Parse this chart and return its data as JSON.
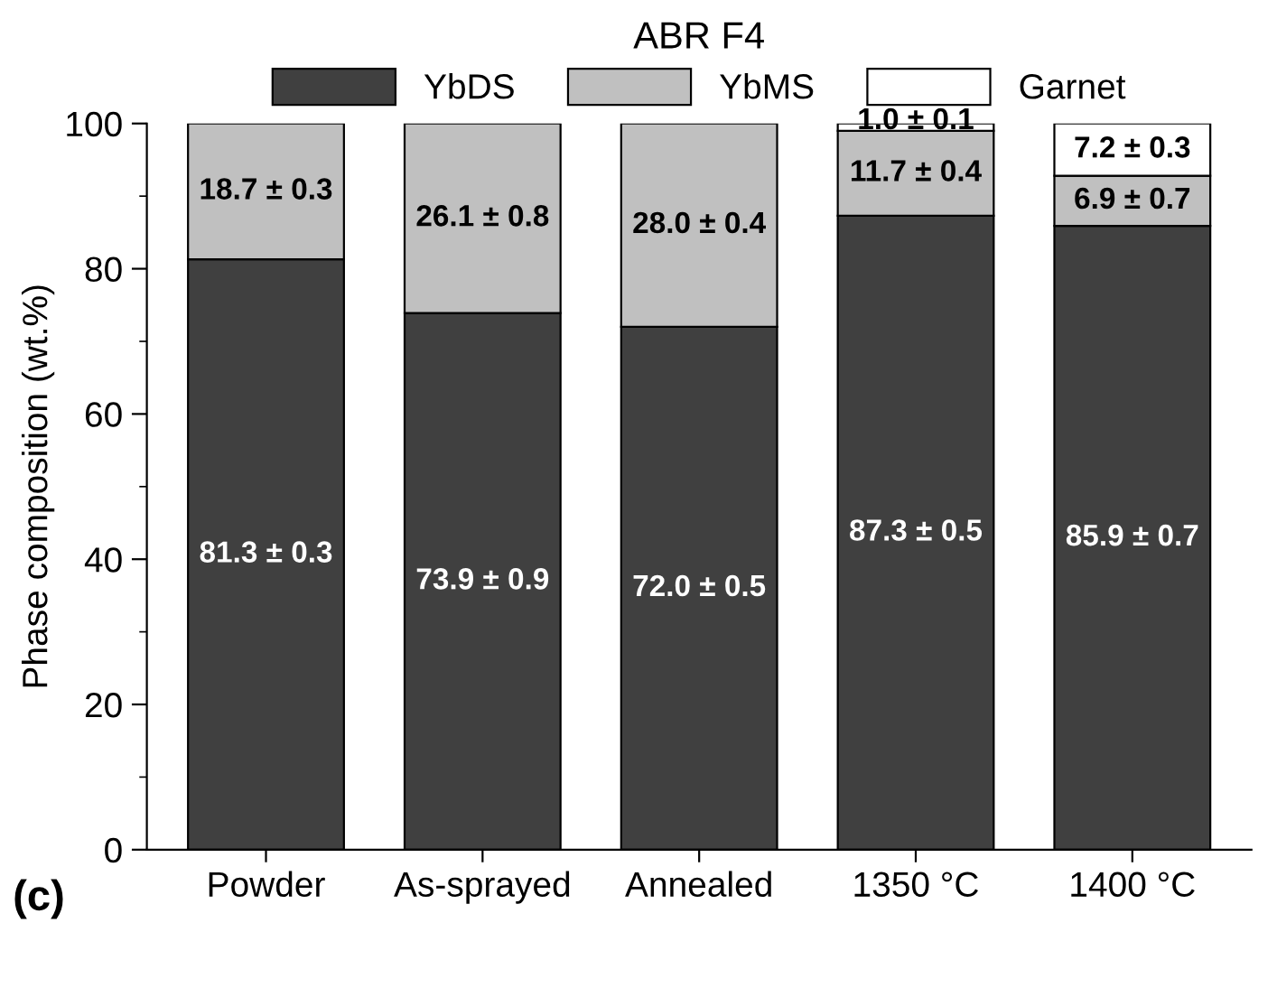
{
  "chart_data": {
    "type": "bar",
    "stacked": true,
    "title": "ABR F4",
    "ylabel": "Phase composition (wt.%)",
    "categories": [
      "Powder",
      "As-sprayed",
      "Annealed",
      "1350 °C",
      "1400 °C"
    ],
    "series": [
      {
        "name": "YbDS",
        "color": "#404040",
        "values": [
          81.3,
          73.9,
          72.0,
          87.3,
          85.9
        ],
        "value_labels": [
          "81.3 ± 0.3",
          "73.9 ± 0.9",
          "72.0 ± 0.5",
          "87.3 ± 0.5",
          "85.9 ± 0.7"
        ]
      },
      {
        "name": "YbMS",
        "color": "#c0c0c0",
        "values": [
          18.7,
          26.1,
          28.0,
          11.7,
          6.9
        ],
        "value_labels": [
          "18.7 ± 0.3",
          "26.1 ± 0.8",
          "28.0 ± 0.4",
          "11.7 ± 0.4",
          "6.9 ± 0.7"
        ]
      },
      {
        "name": "Garnet",
        "color": "#ffffff",
        "values": [
          null,
          null,
          null,
          1.0,
          7.2
        ],
        "value_labels": [
          null,
          null,
          null,
          "1.0 ± 0.1",
          "7.2 ± 0.3"
        ]
      }
    ],
    "ylim": [
      0,
      100
    ],
    "yticks": [
      0,
      20,
      40,
      60,
      80,
      100
    ],
    "legend": "top",
    "grid": false,
    "annotations": [
      "(c)"
    ]
  }
}
